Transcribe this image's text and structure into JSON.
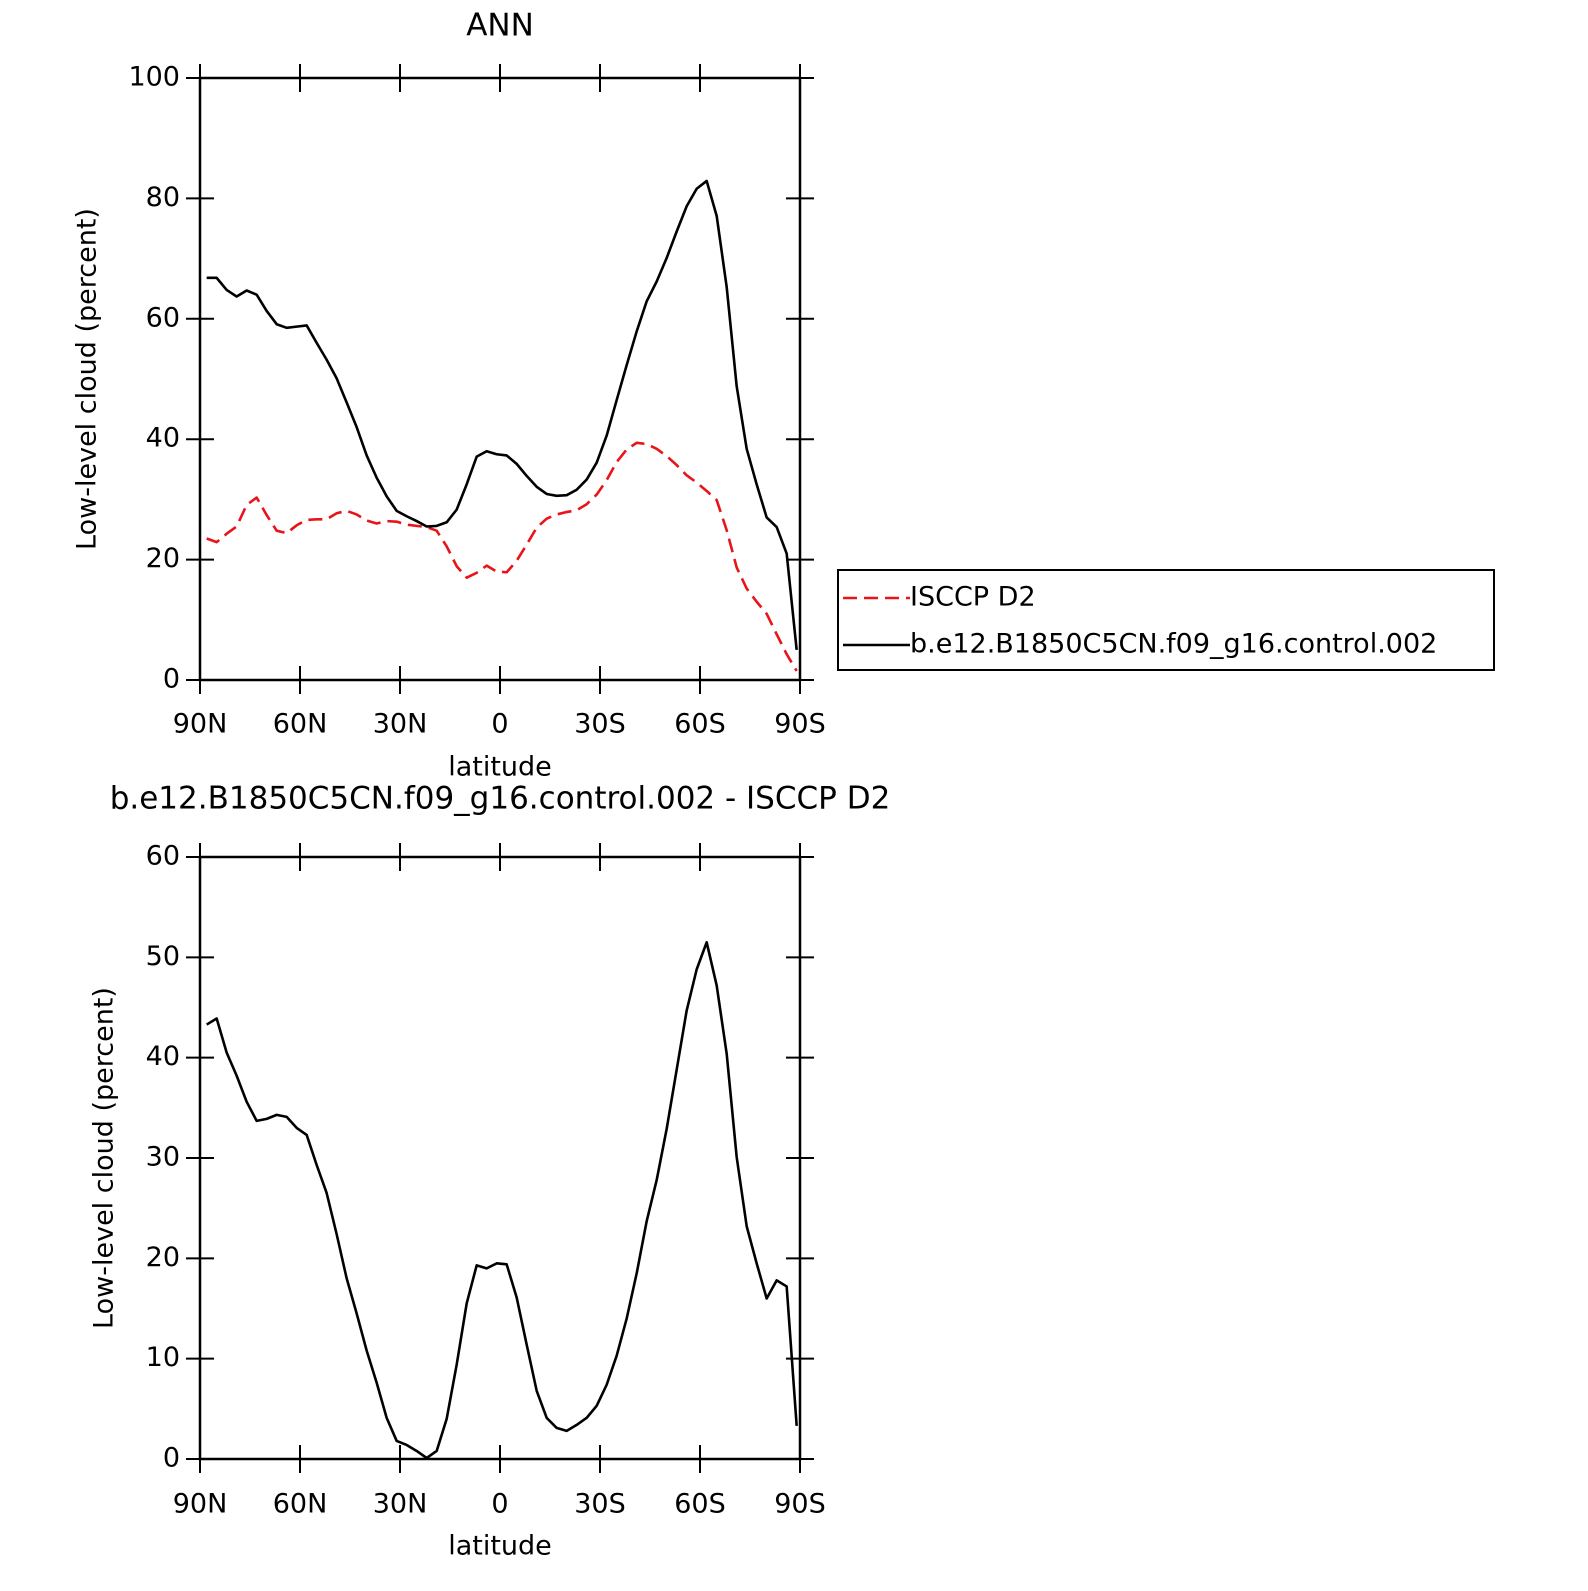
{
  "chart_data": [
    {
      "type": "line",
      "title": "ANN",
      "xlabel": "latitude",
      "ylabel": "Low-level cloud (percent)",
      "x": [
        88,
        85,
        82,
        79,
        76,
        73,
        70,
        67,
        64,
        61,
        58,
        55,
        52,
        49,
        46,
        43,
        40,
        37,
        34,
        31,
        28,
        25,
        22,
        19,
        16,
        13,
        10,
        7,
        4,
        1,
        -2,
        -5,
        -8,
        -11,
        -14,
        -17,
        -20,
        -23,
        -26,
        -29,
        -32,
        -35,
        -38,
        -41,
        -44,
        -47,
        -50,
        -53,
        -56,
        -59,
        -62,
        -65,
        -68,
        -71,
        -74,
        -77,
        -80,
        -83,
        -86,
        -89
      ],
      "xlim": [
        90,
        -90
      ],
      "xticks": [
        {
          "value": 90,
          "label": "90N"
        },
        {
          "value": 60,
          "label": "60N"
        },
        {
          "value": 30,
          "label": "30N"
        },
        0,
        {
          "value": -30,
          "label": "30S"
        },
        {
          "value": -60,
          "label": "60S"
        },
        {
          "value": -90,
          "label": "90S"
        }
      ],
      "ylim": [
        0,
        100
      ],
      "yticks": [
        0,
        20,
        40,
        60,
        80,
        100
      ],
      "grid": false,
      "legend": "outside-right",
      "series": [
        {
          "name": "ISCCP D2",
          "color": "#e8141a",
          "style": "dashed",
          "values": [
            23.5,
            22.9,
            24.3,
            25.5,
            29.1,
            30.3,
            27.4,
            24.8,
            24.4,
            25.7,
            26.6,
            26.7,
            26.7,
            27.7,
            28.1,
            27.5,
            26.5,
            26.0,
            26.4,
            26.3,
            25.8,
            25.6,
            25.4,
            24.8,
            22.2,
            18.9,
            17.0,
            17.8,
            19.0,
            18.0,
            17.9,
            19.8,
            22.5,
            25.3,
            26.8,
            27.5,
            27.9,
            28.2,
            29.2,
            30.8,
            33.2,
            36.2,
            38.3,
            39.4,
            39.2,
            38.4,
            37.2,
            35.7,
            34.0,
            32.8,
            31.4,
            29.9,
            24.9,
            18.7,
            15.2,
            13.0,
            11.0,
            7.6,
            4.3,
            1.5
          ]
        },
        {
          "name": "b.e12.B1850C5CN.f09_g16.control.002",
          "color": "#000000",
          "style": "solid",
          "values": [
            66.8,
            66.8,
            64.8,
            63.7,
            64.7,
            64.0,
            61.3,
            59.1,
            58.5,
            58.7,
            58.9,
            56.0,
            53.2,
            50.1,
            46.1,
            42.0,
            37.3,
            33.6,
            30.5,
            28.1,
            27.2,
            26.4,
            25.5,
            25.6,
            26.2,
            28.3,
            32.5,
            37.1,
            38.0,
            37.5,
            37.3,
            35.9,
            33.9,
            32.1,
            30.9,
            30.6,
            30.7,
            31.6,
            33.3,
            36.1,
            40.6,
            46.5,
            52.3,
            57.9,
            62.9,
            66.2,
            70.1,
            74.5,
            78.7,
            81.6,
            82.9,
            77.1,
            65.3,
            48.8,
            38.4,
            32.5,
            27.0,
            25.4,
            21.0,
            5.0
          ]
        }
      ]
    },
    {
      "type": "line",
      "title": "b.e12.B1850C5CN.f09_g16.control.002 - ISCCP D2",
      "xlabel": "latitude",
      "ylabel": "Low-level cloud (percent)",
      "x": [
        88,
        85,
        82,
        79,
        76,
        73,
        70,
        67,
        64,
        61,
        58,
        55,
        52,
        49,
        46,
        43,
        40,
        37,
        34,
        31,
        28,
        25,
        22,
        19,
        16,
        13,
        10,
        7,
        4,
        1,
        -2,
        -5,
        -8,
        -11,
        -14,
        -17,
        -20,
        -23,
        -26,
        -29,
        -32,
        -35,
        -38,
        -41,
        -44,
        -47,
        -50,
        -53,
        -56,
        -59,
        -62,
        -65,
        -68,
        -71,
        -74,
        -77,
        -80,
        -83,
        -86,
        -89
      ],
      "xlim": [
        90,
        -90
      ],
      "xticks": [
        {
          "value": 90,
          "label": "90N"
        },
        {
          "value": 60,
          "label": "60N"
        },
        {
          "value": 30,
          "label": "30N"
        },
        0,
        {
          "value": -30,
          "label": "30S"
        },
        {
          "value": -60,
          "label": "60S"
        },
        {
          "value": -90,
          "label": "90S"
        }
      ],
      "ylim": [
        0,
        60
      ],
      "yticks": [
        0,
        10,
        20,
        30,
        40,
        50,
        60
      ],
      "grid": false,
      "series": [
        {
          "color": "#000000",
          "style": "solid",
          "values": [
            43.3,
            43.9,
            40.5,
            38.2,
            35.6,
            33.7,
            33.9,
            34.3,
            34.1,
            33.0,
            32.3,
            29.3,
            26.5,
            22.4,
            18.0,
            14.5,
            10.8,
            7.6,
            4.1,
            1.8,
            1.4,
            0.8,
            0.1,
            0.8,
            4.0,
            9.4,
            15.5,
            19.3,
            19.0,
            19.5,
            19.4,
            16.1,
            11.4,
            6.8,
            4.1,
            3.1,
            2.8,
            3.4,
            4.1,
            5.3,
            7.4,
            10.3,
            14.0,
            18.5,
            23.7,
            27.8,
            32.9,
            38.8,
            44.7,
            48.8,
            51.5,
            47.2,
            40.4,
            30.1,
            23.2,
            19.5,
            16.0,
            17.8,
            17.2,
            3.3
          ]
        }
      ]
    }
  ]
}
